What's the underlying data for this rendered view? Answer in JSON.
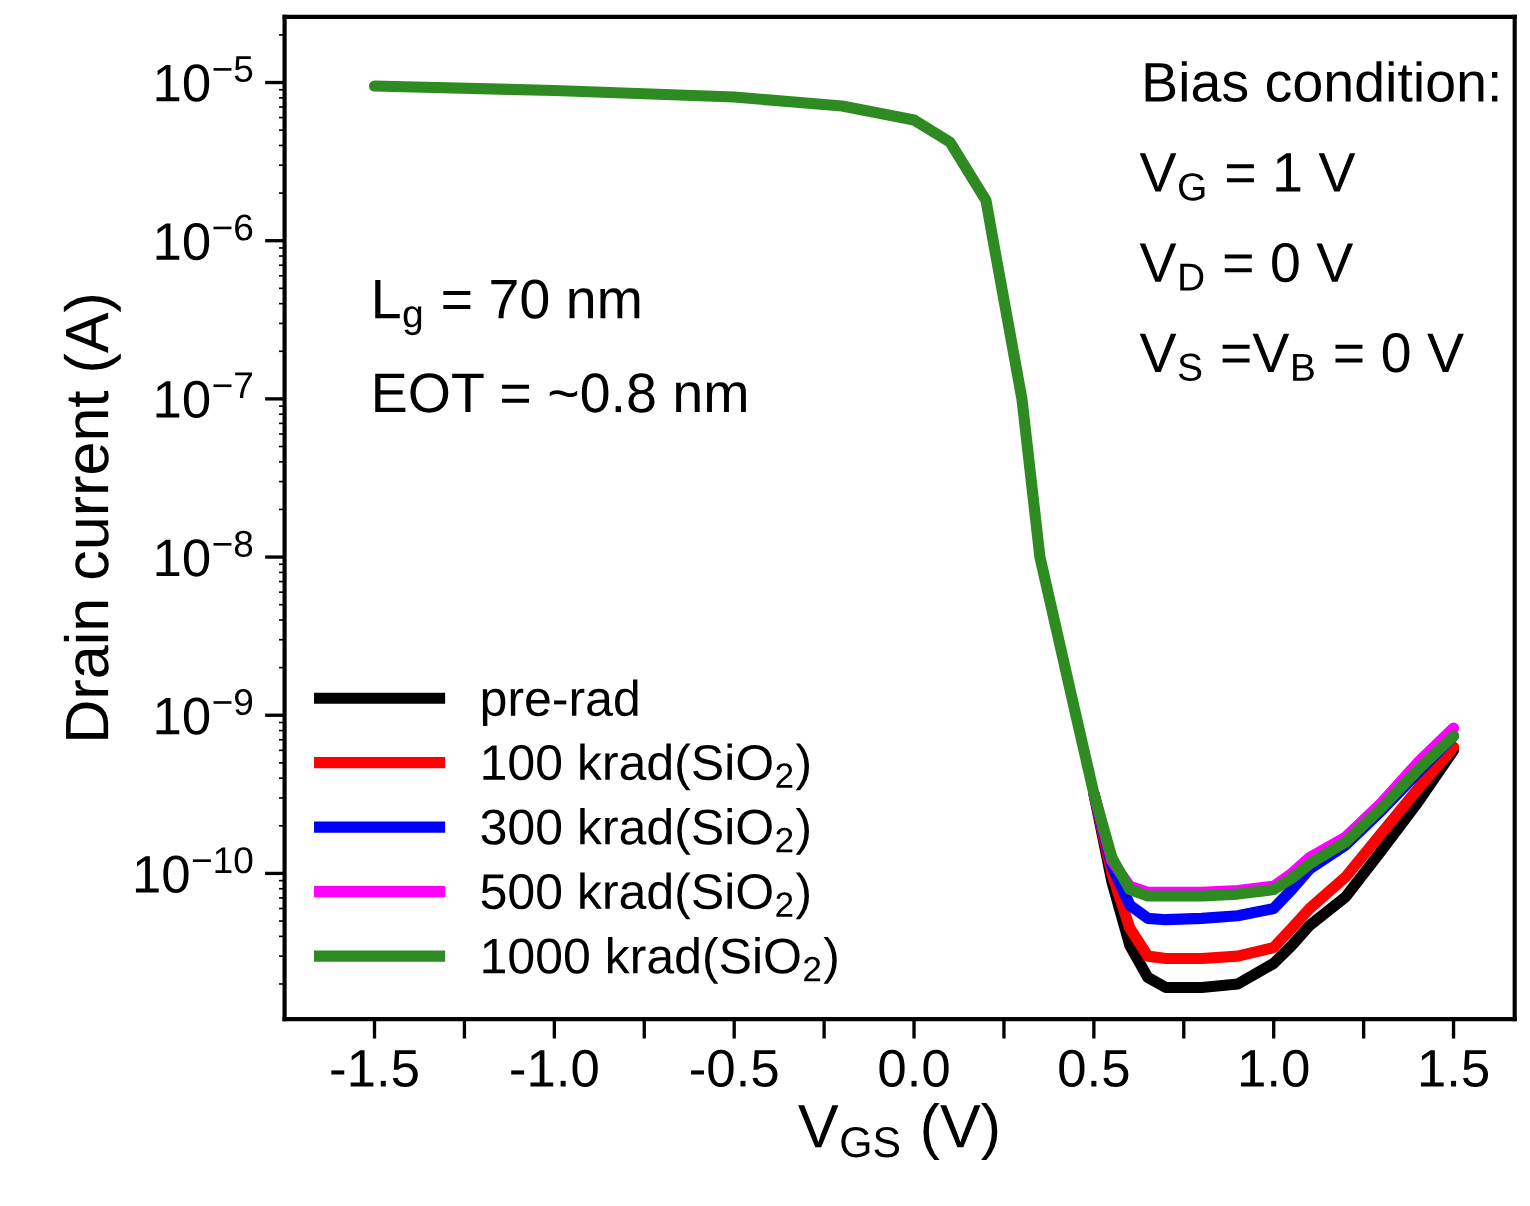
{
  "chart_data": {
    "type": "line",
    "xlabel": "V$_{GS}$ (V)",
    "ylabel": "Drain current (A)",
    "x": [
      -1.5,
      -1.0,
      -0.5,
      -0.2,
      0,
      0.1,
      0.2,
      0.22,
      0.3,
      0.35,
      0.45,
      0.5,
      0.55,
      0.6,
      0.65,
      0.7,
      0.8,
      0.9,
      1.0,
      1.05,
      1.1,
      1.2,
      1.3,
      1.4,
      1.5
    ],
    "series": [
      {
        "name": "pre-rad",
        "color": "#000000",
        "values": [
          null,
          null,
          null,
          null,
          null,
          null,
          null,
          null,
          null,
          null,
          null,
          3.2e-10,
          8.9e-11,
          3.5e-11,
          2.2e-11,
          1.9e-11,
          1.9e-11,
          2e-11,
          2.7e-11,
          3.5e-11,
          4.7e-11,
          7.1e-11,
          1.4e-10,
          2.8e-10,
          6e-10
        ]
      },
      {
        "name": "100 krad(SiO$_{2}$)",
        "color": "#ff0000",
        "values": [
          null,
          null,
          null,
          null,
          null,
          null,
          null,
          null,
          null,
          null,
          null,
          3.2e-10,
          1e-10,
          4.5e-11,
          3e-11,
          2.9e-11,
          2.9e-11,
          3e-11,
          3.4e-11,
          4.5e-11,
          6e-11,
          9.5e-11,
          1.8e-10,
          3.4e-10,
          6.3e-10
        ]
      },
      {
        "name": "300 krad(SiO$_{2}$)",
        "color": "#0000ff",
        "values": [
          null,
          null,
          null,
          null,
          null,
          null,
          null,
          null,
          null,
          null,
          null,
          3.2e-10,
          1.12e-10,
          6.3e-11,
          5.2e-11,
          5.1e-11,
          5.2e-11,
          5.4e-11,
          6e-11,
          7.9e-11,
          1.07e-10,
          1.51e-10,
          2.5e-10,
          4.3e-10,
          7.4e-10
        ]
      },
      {
        "name": "500 krad(SiO$_{2}$)",
        "color": "#ff00ff",
        "values": [
          null,
          null,
          null,
          null,
          null,
          null,
          null,
          null,
          null,
          null,
          null,
          3.2e-10,
          1.2e-10,
          8.3e-11,
          7.6e-11,
          7.6e-11,
          7.6e-11,
          7.8e-11,
          8.3e-11,
          1e-10,
          1.26e-10,
          1.7e-10,
          2.8e-10,
          5e-10,
          8.3e-10
        ]
      },
      {
        "name": "1000 krad(SiO$_{2}$)",
        "color": "#2e8b22",
        "values": [
          9.5e-06,
          8.9e-06,
          8.1e-06,
          7.1e-06,
          5.8e-06,
          4.2e-06,
          1.8e-06,
          1e-06,
          1e-07,
          1e-08,
          1e-09,
          3.2e-10,
          1.26e-10,
          7.9e-11,
          7.2e-11,
          7.2e-11,
          7.2e-11,
          7.4e-11,
          7.9e-11,
          9.3e-11,
          1.15e-10,
          1.58e-10,
          2.6e-10,
          4.5e-10,
          7.4e-10
        ]
      }
    ],
    "log": "y",
    "xlim": [
      -1.75,
      1.67
    ],
    "ylim": [
      1.2e-11,
      2.6e-05
    ],
    "xticks": [
      {
        "value": -1.5,
        "label": "-1.5"
      },
      {
        "value": -1.25,
        "label": null
      },
      {
        "value": -1.0,
        "label": "-1.0"
      },
      {
        "value": -0.75,
        "label": null
      },
      {
        "value": -0.5,
        "label": "-0.5"
      },
      {
        "value": -0.25,
        "label": null
      },
      {
        "value": 0,
        "label": "0.0"
      },
      {
        "value": 0.25,
        "label": null
      },
      {
        "value": 0.5,
        "label": "0.5"
      },
      {
        "value": 0.75,
        "label": null
      },
      {
        "value": 1.0,
        "label": "1.0"
      },
      {
        "value": 1.25,
        "label": null
      },
      {
        "value": 1.5,
        "label": "1.5"
      }
    ],
    "yticks": [
      {
        "value": 1e-10,
        "label": "10$^{−10}$"
      },
      {
        "value": 1e-09,
        "label": "10$^{−9}$"
      },
      {
        "value": 1e-08,
        "label": "10$^{−8}$"
      },
      {
        "value": 1e-07,
        "label": "10$^{−7}$"
      },
      {
        "value": 1e-06,
        "label": "10$^{−6}$"
      },
      {
        "value": 1e-05,
        "label": "10$^{−5}$"
      }
    ],
    "annotations": [
      "L$_{g}$ = 70 nm",
      "EOT = ~0.8 nm",
      "Bias condition:",
      "V$_{G}$ = 1 V",
      "V$_{D}$ = 0 V",
      "V$_{S}$ =V$_{B}$ = 0 V"
    ],
    "legend": "bottom left",
    "grid": false,
    "line_style": "solid",
    "marker": "none"
  }
}
